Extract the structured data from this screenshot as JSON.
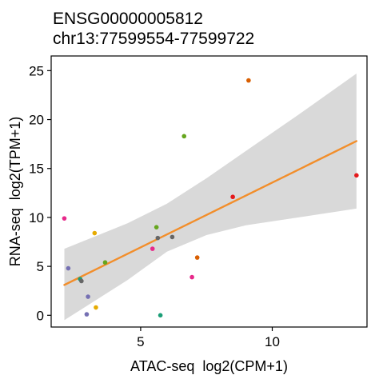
{
  "chart_data": {
    "type": "scatter",
    "title": "ENSG00000005812",
    "subtitle": "chr13:77599554-77599722",
    "xlabel": "ATAC-seq  log2(CPM+1)",
    "ylabel": "RNA-seq  log2(TPM+1)",
    "xlim": [
      1.6,
      13.6
    ],
    "ylim": [
      -1.2,
      26.5
    ],
    "xticks": [
      5,
      10
    ],
    "yticks": [
      0,
      5,
      10,
      15,
      20,
      25
    ],
    "grid": false,
    "legend": "none",
    "points": [
      {
        "x": 2.1,
        "y": 9.9,
        "color": "#E7298A"
      },
      {
        "x": 2.25,
        "y": 4.8,
        "color": "#7570B3"
      },
      {
        "x": 2.7,
        "y": 3.7,
        "color": "#1B9E77"
      },
      {
        "x": 2.75,
        "y": 3.5,
        "color": "#666666"
      },
      {
        "x": 2.95,
        "y": 0.1,
        "color": "#7570B3"
      },
      {
        "x": 3.0,
        "y": 1.9,
        "color": "#7570B3"
      },
      {
        "x": 3.25,
        "y": 8.4,
        "color": "#E6AB02"
      },
      {
        "x": 3.3,
        "y": 0.8,
        "color": "#E6AB02"
      },
      {
        "x": 3.65,
        "y": 5.4,
        "color": "#66A61E"
      },
      {
        "x": 5.45,
        "y": 6.8,
        "color": "#E7298A"
      },
      {
        "x": 5.6,
        "y": 9.0,
        "color": "#66A61E"
      },
      {
        "x": 5.65,
        "y": 7.9,
        "color": "#666666"
      },
      {
        "x": 5.75,
        "y": 0.0,
        "color": "#1B9E77"
      },
      {
        "x": 6.2,
        "y": 8.0,
        "color": "#666666"
      },
      {
        "x": 6.65,
        "y": 18.3,
        "color": "#66A61E"
      },
      {
        "x": 6.95,
        "y": 3.9,
        "color": "#E7298A"
      },
      {
        "x": 7.15,
        "y": 5.9,
        "color": "#D95F02"
      },
      {
        "x": 8.5,
        "y": 12.1,
        "color": "#E41A1C"
      },
      {
        "x": 9.1,
        "y": 24.0,
        "color": "#D95F02"
      },
      {
        "x": 13.2,
        "y": 14.3,
        "color": "#E41A1C"
      }
    ],
    "fit_line": {
      "x": [
        2.1,
        13.2
      ],
      "y": [
        3.1,
        17.8
      ],
      "color": "#F28E2B"
    },
    "confidence_band": {
      "x": [
        2.1,
        4.5,
        6.0,
        7.5,
        9.0,
        11.0,
        13.2
      ],
      "lower": [
        -0.5,
        3.6,
        6.5,
        8.2,
        9.2,
        10.0,
        10.9
      ],
      "upper": [
        6.8,
        9.4,
        11.4,
        14.0,
        16.8,
        20.5,
        24.7
      ],
      "color": "#D9D9D9"
    }
  }
}
